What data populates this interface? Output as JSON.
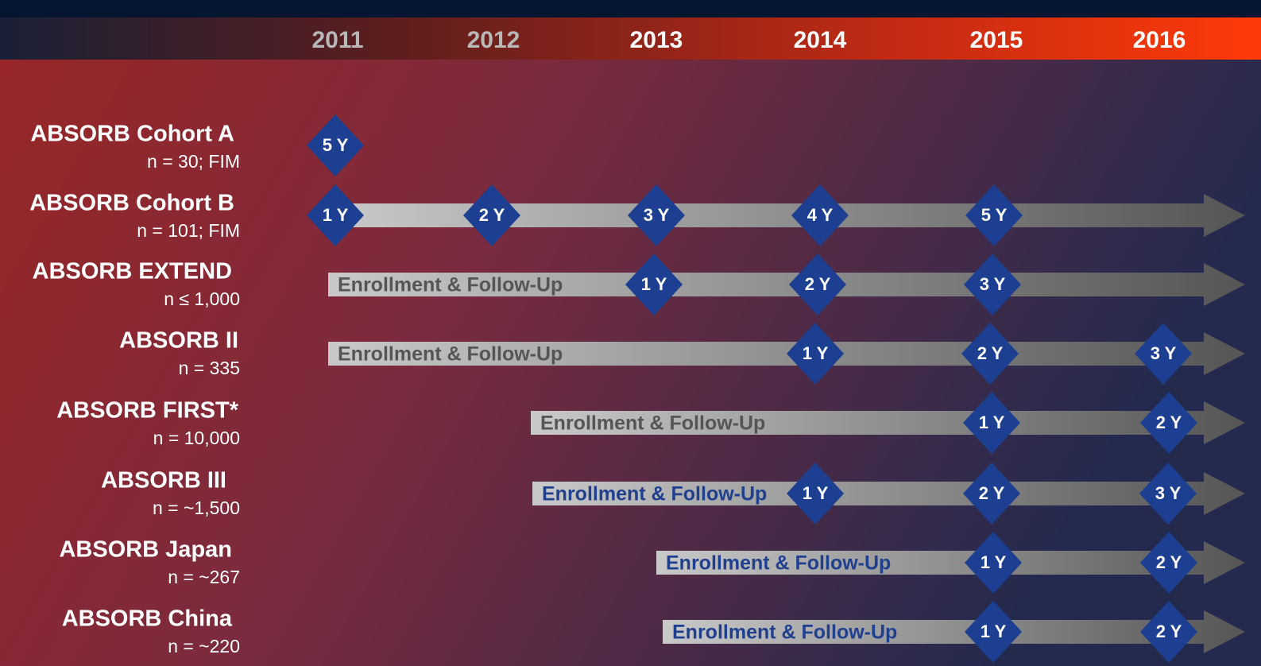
{
  "header": {
    "years": [
      "2011",
      "2012",
      "2013",
      "2014",
      "2015",
      "2016"
    ]
  },
  "rows": [
    {
      "name": "ABSORB Cohort A",
      "n": "n = 30; FIM",
      "milestones": [
        "5 Y"
      ]
    },
    {
      "name": "ABSORB Cohort B",
      "n": "n = 101; FIM",
      "milestones": [
        "1 Y",
        "2 Y",
        "3 Y",
        "4 Y",
        "5 Y"
      ]
    },
    {
      "name": "ABSORB EXTEND",
      "n": "n ≤ 1,000",
      "phase": "Enrollment & Follow-Up",
      "milestones": [
        "1 Y",
        "2 Y",
        "3 Y"
      ]
    },
    {
      "name": "ABSORB II",
      "n": "n = 335",
      "phase": "Enrollment & Follow-Up",
      "milestones": [
        "1 Y",
        "2 Y",
        "3 Y"
      ]
    },
    {
      "name": "ABSORB FIRST*",
      "n": "n = 10,000",
      "phase": "Enrollment & Follow-Up",
      "milestones": [
        "1 Y",
        "2 Y"
      ]
    },
    {
      "name": "ABSORB III",
      "n": "n = ~1,500",
      "phase": "Enrollment & Follow-Up",
      "milestones": [
        "1 Y",
        "2 Y",
        "3 Y"
      ]
    },
    {
      "name": "ABSORB Japan",
      "n": "n = ~267",
      "phase": "Enrollment & Follow-Up",
      "milestones": [
        "1 Y",
        "2 Y"
      ]
    },
    {
      "name": "ABSORB China",
      "n": "n = ~220",
      "phase": "Enrollment & Follow-Up",
      "milestones": [
        "1 Y",
        "2 Y"
      ]
    }
  ]
}
